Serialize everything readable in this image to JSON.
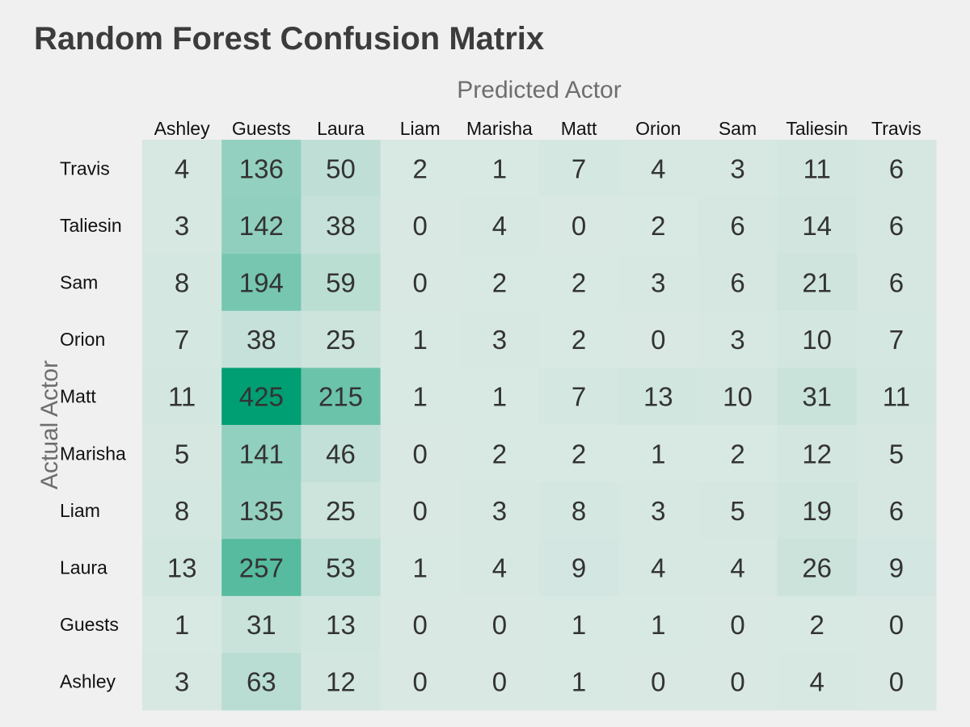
{
  "chart_data": {
    "type": "heatmap",
    "title": "Random Forest Confusion Matrix",
    "xlabel": "Predicted Actor",
    "ylabel": "Actual Actor",
    "x_categories": [
      "Ashley",
      "Guests",
      "Laura",
      "Liam",
      "Marisha",
      "Matt",
      "Orion",
      "Sam",
      "Taliesin",
      "Travis"
    ],
    "y_categories": [
      "Travis",
      "Taliesin",
      "Sam",
      "Orion",
      "Matt",
      "Marisha",
      "Liam",
      "Laura",
      "Guests",
      "Ashley"
    ],
    "values": [
      [
        4,
        136,
        50,
        2,
        1,
        7,
        4,
        3,
        11,
        6
      ],
      [
        3,
        142,
        38,
        0,
        4,
        0,
        2,
        6,
        14,
        6
      ],
      [
        8,
        194,
        59,
        0,
        2,
        2,
        3,
        6,
        21,
        6
      ],
      [
        7,
        38,
        25,
        1,
        3,
        2,
        0,
        3,
        10,
        7
      ],
      [
        11,
        425,
        215,
        1,
        1,
        7,
        13,
        10,
        31,
        11
      ],
      [
        5,
        141,
        46,
        0,
        2,
        2,
        1,
        2,
        12,
        5
      ],
      [
        8,
        135,
        25,
        0,
        3,
        8,
        3,
        5,
        19,
        6
      ],
      [
        13,
        257,
        53,
        1,
        4,
        9,
        4,
        4,
        26,
        9
      ],
      [
        1,
        31,
        13,
        0,
        0,
        1,
        1,
        0,
        2,
        0
      ],
      [
        3,
        63,
        12,
        0,
        0,
        1,
        0,
        0,
        4,
        0
      ]
    ],
    "colors": {
      "low": "#d9e8e3",
      "high": "#009e73",
      "background": "#f0f0f0",
      "text": "#333333",
      "axis_label": "#6e6e6e"
    }
  }
}
